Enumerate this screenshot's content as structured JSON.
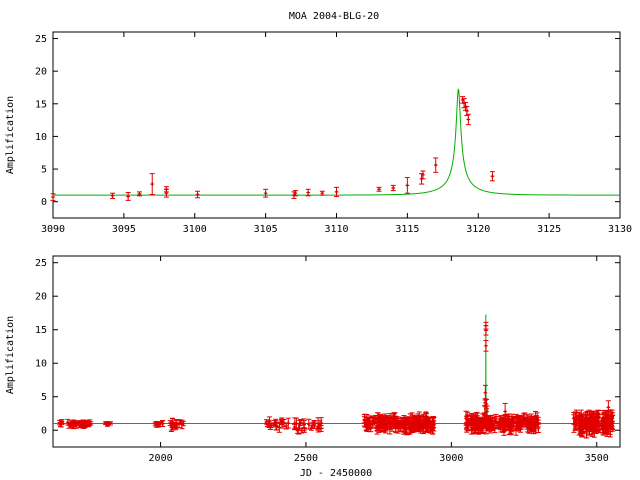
{
  "title": "MOA 2004-BLG-20",
  "colors": {
    "model": "#00b000",
    "data": "#e00000",
    "frame": "#000000"
  },
  "chart_data": [
    {
      "type": "scatter",
      "title": "MOA 2004-BLG-20",
      "xlabel": "",
      "ylabel": "Amplification",
      "xlim": [
        3090,
        3130
      ],
      "ylim": [
        -2.5,
        26
      ],
      "xticks": [
        "3090",
        "3095",
        "3100",
        "3105",
        "3110",
        "3115",
        "3120",
        "3125",
        "3130"
      ],
      "yticks": [
        "0",
        "5",
        "10",
        "15",
        "20",
        "25"
      ],
      "model": {
        "t0": 3118.6,
        "u0": 0.058,
        "tE": 2.55,
        "baseline": 1.0
      },
      "points": [
        {
          "x": 3090.0,
          "y": 0.7,
          "e": 0.5
        },
        {
          "x": 3094.2,
          "y": 0.9,
          "e": 0.4
        },
        {
          "x": 3095.3,
          "y": 0.8,
          "e": 0.6
        },
        {
          "x": 3096.1,
          "y": 1.2,
          "e": 0.3
        },
        {
          "x": 3097.0,
          "y": 2.7,
          "e": 1.6
        },
        {
          "x": 3098.0,
          "y": 1.3,
          "e": 0.6
        },
        {
          "x": 3098.0,
          "y": 1.9,
          "e": 0.4
        },
        {
          "x": 3100.2,
          "y": 1.1,
          "e": 0.5
        },
        {
          "x": 3105.0,
          "y": 1.3,
          "e": 0.6
        },
        {
          "x": 3107.0,
          "y": 1.0,
          "e": 0.5
        },
        {
          "x": 3107.1,
          "y": 1.3,
          "e": 0.4
        },
        {
          "x": 3108.0,
          "y": 1.4,
          "e": 0.5
        },
        {
          "x": 3109.0,
          "y": 1.3,
          "e": 0.3
        },
        {
          "x": 3110.0,
          "y": 1.5,
          "e": 0.7
        },
        {
          "x": 3113.0,
          "y": 1.9,
          "e": 0.3
        },
        {
          "x": 3114.0,
          "y": 2.1,
          "e": 0.4
        },
        {
          "x": 3115.0,
          "y": 2.5,
          "e": 1.2
        },
        {
          "x": 3116.0,
          "y": 3.5,
          "e": 0.8
        },
        {
          "x": 3116.1,
          "y": 4.1,
          "e": 0.6
        },
        {
          "x": 3117.0,
          "y": 5.6,
          "e": 1.1
        },
        {
          "x": 3118.9,
          "y": 15.6,
          "e": 0.5
        },
        {
          "x": 3119.0,
          "y": 15.1,
          "e": 0.7
        },
        {
          "x": 3119.1,
          "y": 14.6,
          "e": 0.6
        },
        {
          "x": 3119.2,
          "y": 13.9,
          "e": 0.7
        },
        {
          "x": 3119.3,
          "y": 12.6,
          "e": 0.8
        },
        {
          "x": 3121.0,
          "y": 3.9,
          "e": 0.7
        }
      ]
    },
    {
      "type": "scatter",
      "title": "",
      "xlabel": "JD - 2450000",
      "ylabel": "Amplification",
      "xlim": [
        1630,
        3580
      ],
      "ylim": [
        -2.5,
        26
      ],
      "xticks": [
        "2000",
        "2500",
        "3000",
        "3500"
      ],
      "yticks": [
        "0",
        "5",
        "10",
        "15",
        "20",
        "25"
      ],
      "model": {
        "t0": 3118.6,
        "u0": 0.058,
        "tE": 2.55,
        "baseline": 1.0
      },
      "segments": [
        {
          "from": 1650,
          "to": 1760,
          "count": 40,
          "mean": 0.9,
          "spread": 0.35,
          "err": 0.3
        },
        {
          "from": 1810,
          "to": 1830,
          "count": 6,
          "mean": 0.9,
          "spread": 0.2,
          "err": 0.25
        },
        {
          "from": 1980,
          "to": 2010,
          "count": 10,
          "mean": 0.9,
          "spread": 0.3,
          "err": 0.3
        },
        {
          "from": 2030,
          "to": 2080,
          "count": 16,
          "mean": 0.8,
          "spread": 0.45,
          "err": 0.5
        },
        {
          "from": 2360,
          "to": 2440,
          "count": 20,
          "mean": 0.9,
          "spread": 0.5,
          "err": 0.5
        },
        {
          "from": 2460,
          "to": 2560,
          "count": 22,
          "mean": 0.6,
          "spread": 0.7,
          "err": 0.6
        },
        {
          "from": 2700,
          "to": 2940,
          "count": 200,
          "mean": 1.0,
          "spread": 0.75,
          "err": 0.7
        },
        {
          "from": 3050,
          "to": 3300,
          "count": 200,
          "mean": 1.0,
          "spread": 0.8,
          "err": 0.7
        },
        {
          "from": 3420,
          "to": 3555,
          "count": 150,
          "mean": 1.0,
          "spread": 0.9,
          "err": 0.9
        }
      ],
      "points": [
        {
          "x": 3119,
          "y": 15.6,
          "e": 0.5
        },
        {
          "x": 3119,
          "y": 14.9,
          "e": 0.7
        },
        {
          "x": 3119,
          "y": 12.6,
          "e": 0.8
        },
        {
          "x": 3117,
          "y": 5.6,
          "e": 1.1
        },
        {
          "x": 3116,
          "y": 4.1,
          "e": 0.6
        },
        {
          "x": 3121,
          "y": 3.9,
          "e": 0.7
        },
        {
          "x": 3115,
          "y": 2.5,
          "e": 1.2
        },
        {
          "x": 3123,
          "y": 2.8,
          "e": 0.8
        },
        {
          "x": 3185,
          "y": 2.8,
          "e": 1.2
        },
        {
          "x": 3540,
          "y": 3.4,
          "e": 1.0
        }
      ]
    }
  ]
}
